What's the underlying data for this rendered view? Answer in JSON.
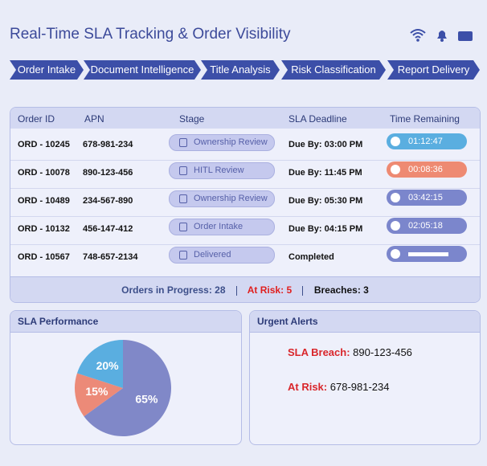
{
  "header": {
    "title": "Real-Time SLA Tracking & Order Visibility"
  },
  "pipeline": [
    "Order Intake",
    "Document Intelligence",
    "Title Analysis",
    "Risk Classification",
    "Report Delivery"
  ],
  "table": {
    "columns": [
      "Order ID",
      "APN",
      "Stage",
      "SLA Deadline",
      "Time Remaining"
    ],
    "rows": [
      {
        "id": "ORD - 10245",
        "apn": "678-981-234",
        "stage": "Ownership Review",
        "deadline": "Due By: 03:00 PM",
        "remaining": "01:12:47",
        "color": "#5aaee0"
      },
      {
        "id": "ORD - 10078",
        "apn": "890-123-456",
        "stage": "HITL Review",
        "deadline": "Due By: 11:45 PM",
        "remaining": "00:08:36",
        "color": "#ee8a72"
      },
      {
        "id": "ORD - 10489",
        "apn": "234-567-890",
        "stage": "Ownership Review",
        "deadline": "Due By: 05:30 PM",
        "remaining": "03:42:15",
        "color": "#7b86cc"
      },
      {
        "id": "ORD - 10132",
        "apn": "456-147-412",
        "stage": "Order Intake",
        "deadline": "Due By: 04:15 PM",
        "remaining": "02:05:18",
        "color": "#7b86cc"
      },
      {
        "id": "ORD - 10567",
        "apn": "748-657-2134",
        "stage": "Delivered",
        "deadline": "Completed",
        "color": "#7b86cc"
      }
    ]
  },
  "summary": {
    "in_progress": "Orders in Progress: 28",
    "at_risk": "At Risk: 5",
    "breaches": "Breaches: 3"
  },
  "chart_data": {
    "type": "pie",
    "title": "SLA Performance",
    "values": [
      65,
      15,
      20
    ],
    "value_labels": [
      "65%",
      "15%",
      "20%"
    ],
    "colors": [
      "#8088c8",
      "#ec8a78",
      "#5aaee0"
    ]
  },
  "alerts": {
    "title": "Urgent Alerts",
    "items": [
      {
        "label": "SLA Breach:",
        "value": "890-123-456",
        "color": "#d9262b"
      },
      {
        "label": "At Risk:",
        "value": "678-981-234",
        "color": "#44aee0"
      }
    ]
  }
}
